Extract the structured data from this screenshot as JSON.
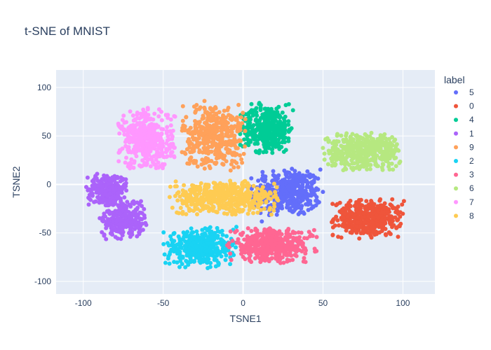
{
  "chart_data": {
    "type": "scatter",
    "title": "t-SNE of MNIST",
    "xlabel": "TSNE1",
    "ylabel": "TSNE2",
    "xlim": [
      -117,
      120
    ],
    "ylim": [
      -113,
      118
    ],
    "xticks": [
      -100,
      -50,
      0,
      50,
      100
    ],
    "yticks": [
      -100,
      -50,
      0,
      50,
      100
    ],
    "grid": true,
    "legend_title": "label",
    "legend_position": "right",
    "series": [
      {
        "name": "5",
        "color": "#636efa",
        "clusters": [
          {
            "cx": 28,
            "cy": -8,
            "sx": 14,
            "sy": 16,
            "n": 420
          }
        ]
      },
      {
        "name": "0",
        "color": "#ef553b",
        "clusters": [
          {
            "cx": 78,
            "cy": -35,
            "sx": 14,
            "sy": 12,
            "n": 420
          }
        ]
      },
      {
        "name": "4",
        "color": "#00cc96",
        "clusters": [
          {
            "cx": 15,
            "cy": 58,
            "sx": 11,
            "sy": 16,
            "n": 400
          }
        ]
      },
      {
        "name": "1",
        "color": "#ab63fa",
        "clusters": [
          {
            "cx": -85,
            "cy": -5,
            "sx": 8,
            "sy": 10,
            "n": 260
          },
          {
            "cx": -75,
            "cy": -35,
            "sx": 9,
            "sy": 13,
            "n": 260
          }
        ]
      },
      {
        "name": "9",
        "color": "#ffa15a",
        "clusters": [
          {
            "cx": -18,
            "cy": 50,
            "sx": 13,
            "sy": 22,
            "n": 420
          }
        ]
      },
      {
        "name": "2",
        "color": "#19d3f3",
        "clusters": [
          {
            "cx": -27,
            "cy": -65,
            "sx": 14,
            "sy": 13,
            "n": 400
          }
        ]
      },
      {
        "name": "3",
        "color": "#ff6692",
        "clusters": [
          {
            "cx": 18,
            "cy": -63,
            "sx": 17,
            "sy": 11,
            "n": 420
          }
        ]
      },
      {
        "name": "6",
        "color": "#b6e880",
        "clusters": [
          {
            "cx": 75,
            "cy": 34,
            "sx": 16,
            "sy": 12,
            "n": 420
          }
        ]
      },
      {
        "name": "7",
        "color": "#ff97ff",
        "clusters": [
          {
            "cx": -60,
            "cy": 46,
            "sx": 11,
            "sy": 20,
            "n": 420
          }
        ]
      },
      {
        "name": "8",
        "color": "#fecb52",
        "clusters": [
          {
            "cx": -12,
            "cy": -14,
            "sx": 22,
            "sy": 11,
            "n": 460
          }
        ]
      }
    ]
  }
}
